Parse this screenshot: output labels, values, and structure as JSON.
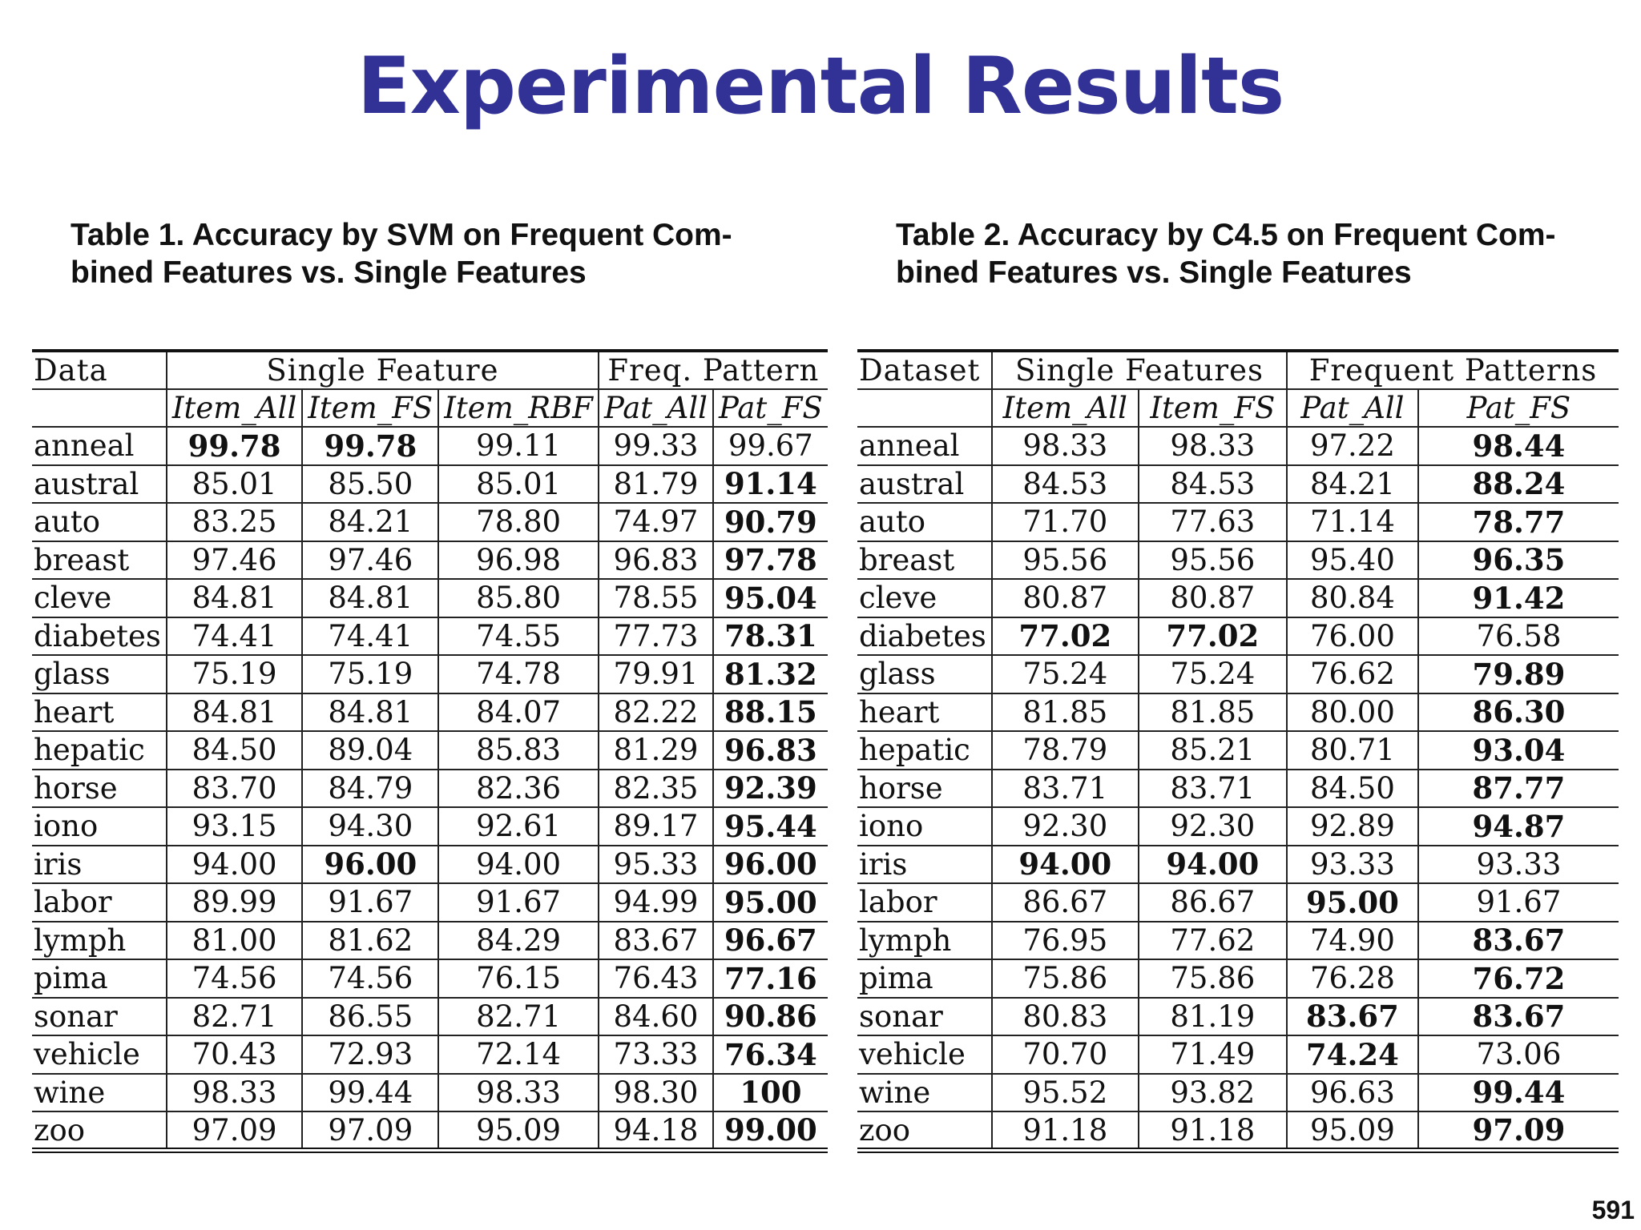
{
  "slide": {
    "title": "Experimental Results",
    "title_color": "#323296",
    "page_number": "591"
  },
  "table1": {
    "caption_line1": "Table 1. Accuracy by SVM on Frequent Com-",
    "caption_line2": "bined Features vs. Single Features",
    "group_headers": [
      "Data",
      "Single Feature",
      "Freq. Pattern"
    ],
    "sub_headers": [
      "Item_All",
      "Item_FS",
      "Item_RBF",
      "Pat_All",
      "Pat_FS"
    ],
    "rows": [
      [
        "anneal",
        "99.78",
        "99.78",
        "99.11",
        "99.33",
        "99.67"
      ],
      [
        "austral",
        "85.01",
        "85.50",
        "85.01",
        "81.79",
        "91.14"
      ],
      [
        "auto",
        "83.25",
        "84.21",
        "78.80",
        "74.97",
        "90.79"
      ],
      [
        "breast",
        "97.46",
        "97.46",
        "96.98",
        "96.83",
        "97.78"
      ],
      [
        "cleve",
        "84.81",
        "84.81",
        "85.80",
        "78.55",
        "95.04"
      ],
      [
        "diabetes",
        "74.41",
        "74.41",
        "74.55",
        "77.73",
        "78.31"
      ],
      [
        "glass",
        "75.19",
        "75.19",
        "74.78",
        "79.91",
        "81.32"
      ],
      [
        "heart",
        "84.81",
        "84.81",
        "84.07",
        "82.22",
        "88.15"
      ],
      [
        "hepatic",
        "84.50",
        "89.04",
        "85.83",
        "81.29",
        "96.83"
      ],
      [
        "horse",
        "83.70",
        "84.79",
        "82.36",
        "82.35",
        "92.39"
      ],
      [
        "iono",
        "93.15",
        "94.30",
        "92.61",
        "89.17",
        "95.44"
      ],
      [
        "iris",
        "94.00",
        "96.00",
        "94.00",
        "95.33",
        "96.00"
      ],
      [
        "labor",
        "89.99",
        "91.67",
        "91.67",
        "94.99",
        "95.00"
      ],
      [
        "lymph",
        "81.00",
        "81.62",
        "84.29",
        "83.67",
        "96.67"
      ],
      [
        "pima",
        "74.56",
        "74.56",
        "76.15",
        "76.43",
        "77.16"
      ],
      [
        "sonar",
        "82.71",
        "86.55",
        "82.71",
        "84.60",
        "90.86"
      ],
      [
        "vehicle",
        "70.43",
        "72.93",
        "72.14",
        "73.33",
        "76.34"
      ],
      [
        "wine",
        "98.33",
        "99.44",
        "98.33",
        "98.30",
        "100"
      ],
      [
        "zoo",
        "97.09",
        "97.09",
        "95.09",
        "94.18",
        "99.00"
      ]
    ],
    "bold_cells": [
      [
        0,
        1
      ],
      [
        0,
        2
      ],
      [
        1,
        5
      ],
      [
        2,
        5
      ],
      [
        3,
        5
      ],
      [
        4,
        5
      ],
      [
        5,
        5
      ],
      [
        6,
        5
      ],
      [
        7,
        5
      ],
      [
        8,
        5
      ],
      [
        9,
        5
      ],
      [
        10,
        5
      ],
      [
        11,
        2
      ],
      [
        11,
        5
      ],
      [
        12,
        5
      ],
      [
        13,
        5
      ],
      [
        14,
        5
      ],
      [
        15,
        5
      ],
      [
        16,
        5
      ],
      [
        17,
        5
      ],
      [
        18,
        5
      ]
    ]
  },
  "table2": {
    "caption_line1": "Table 2. Accuracy by C4.5 on Frequent Com-",
    "caption_line2": "bined Features vs. Single Features",
    "group_headers": [
      "Dataset",
      "Single Features",
      "Frequent Patterns"
    ],
    "sub_headers": [
      "Item_All",
      "Item_FS",
      "Pat_All",
      "Pat_FS"
    ],
    "rows": [
      [
        "anneal",
        "98.33",
        "98.33",
        "97.22",
        "98.44"
      ],
      [
        "austral",
        "84.53",
        "84.53",
        "84.21",
        "88.24"
      ],
      [
        "auto",
        "71.70",
        "77.63",
        "71.14",
        "78.77"
      ],
      [
        "breast",
        "95.56",
        "95.56",
        "95.40",
        "96.35"
      ],
      [
        "cleve",
        "80.87",
        "80.87",
        "80.84",
        "91.42"
      ],
      [
        "diabetes",
        "77.02",
        "77.02",
        "76.00",
        "76.58"
      ],
      [
        "glass",
        "75.24",
        "75.24",
        "76.62",
        "79.89"
      ],
      [
        "heart",
        "81.85",
        "81.85",
        "80.00",
        "86.30"
      ],
      [
        "hepatic",
        "78.79",
        "85.21",
        "80.71",
        "93.04"
      ],
      [
        "horse",
        "83.71",
        "83.71",
        "84.50",
        "87.77"
      ],
      [
        "iono",
        "92.30",
        "92.30",
        "92.89",
        "94.87"
      ],
      [
        "iris",
        "94.00",
        "94.00",
        "93.33",
        "93.33"
      ],
      [
        "labor",
        "86.67",
        "86.67",
        "95.00",
        "91.67"
      ],
      [
        "lymph",
        "76.95",
        "77.62",
        "74.90",
        "83.67"
      ],
      [
        "pima",
        "75.86",
        "75.86",
        "76.28",
        "76.72"
      ],
      [
        "sonar",
        "80.83",
        "81.19",
        "83.67",
        "83.67"
      ],
      [
        "vehicle",
        "70.70",
        "71.49",
        "74.24",
        "73.06"
      ],
      [
        "wine",
        "95.52",
        "93.82",
        "96.63",
        "99.44"
      ],
      [
        "zoo",
        "91.18",
        "91.18",
        "95.09",
        "97.09"
      ]
    ],
    "bold_cells": [
      [
        0,
        4
      ],
      [
        1,
        4
      ],
      [
        2,
        4
      ],
      [
        3,
        4
      ],
      [
        4,
        4
      ],
      [
        5,
        1
      ],
      [
        5,
        2
      ],
      [
        6,
        4
      ],
      [
        7,
        4
      ],
      [
        8,
        4
      ],
      [
        9,
        4
      ],
      [
        10,
        4
      ],
      [
        11,
        1
      ],
      [
        11,
        2
      ],
      [
        12,
        3
      ],
      [
        13,
        4
      ],
      [
        14,
        4
      ],
      [
        15,
        3
      ],
      [
        15,
        4
      ],
      [
        16,
        3
      ],
      [
        17,
        4
      ],
      [
        18,
        4
      ]
    ]
  }
}
